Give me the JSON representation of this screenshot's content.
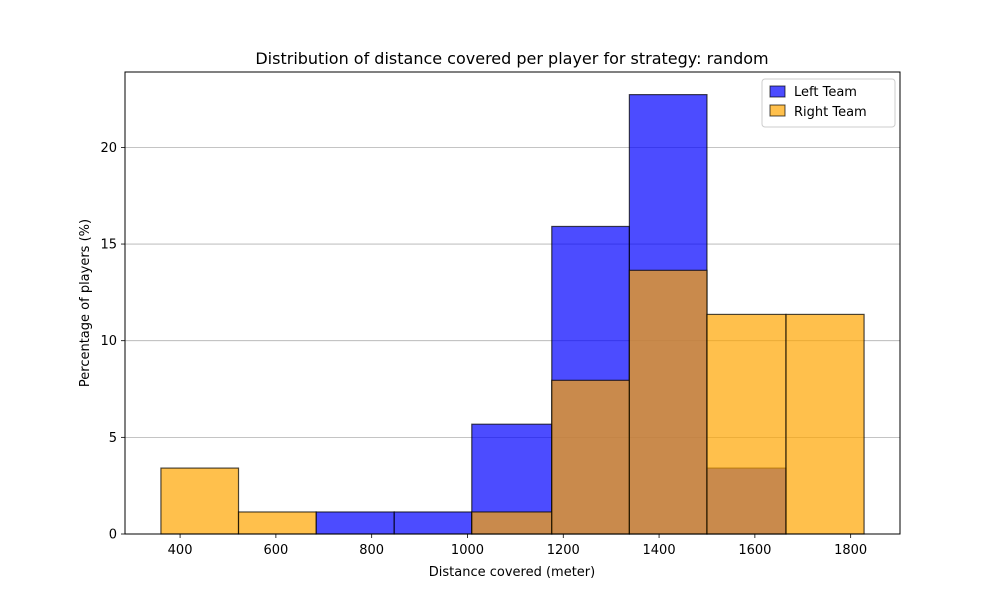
{
  "chart_data": {
    "type": "bar",
    "subtype": "overlapping-histogram",
    "title": "Distribution of distance covered per player for strategy: random",
    "xlabel": "Distance covered (meter)",
    "ylabel": "Percentage of players (%)",
    "xlim": [
      285,
      1903
    ],
    "ylim": [
      0,
      23.9
    ],
    "xticks": [
      400,
      600,
      800,
      1000,
      1200,
      1400,
      1600,
      1800
    ],
    "yticks": [
      0,
      5,
      10,
      15,
      20
    ],
    "grid": "y",
    "legend_position": "top-right",
    "bins": [
      [
        360,
        522
      ],
      [
        522,
        684
      ],
      [
        684,
        847
      ],
      [
        847,
        1009
      ],
      [
        1009,
        1176
      ],
      [
        1176,
        1338
      ],
      [
        1338,
        1500
      ],
      [
        1500,
        1665
      ],
      [
        1665,
        1828
      ]
    ],
    "series": [
      {
        "name": "Left Team",
        "color": "#0000ff",
        "alpha": 0.7,
        "values": [
          0,
          0,
          1.14,
          1.14,
          5.68,
          15.91,
          22.73,
          3.41,
          0
        ]
      },
      {
        "name": "Right Team",
        "color": "#ffa500",
        "alpha": 0.7,
        "values": [
          3.41,
          1.14,
          0,
          0,
          1.14,
          7.95,
          13.64,
          11.36,
          11.36
        ]
      }
    ]
  }
}
